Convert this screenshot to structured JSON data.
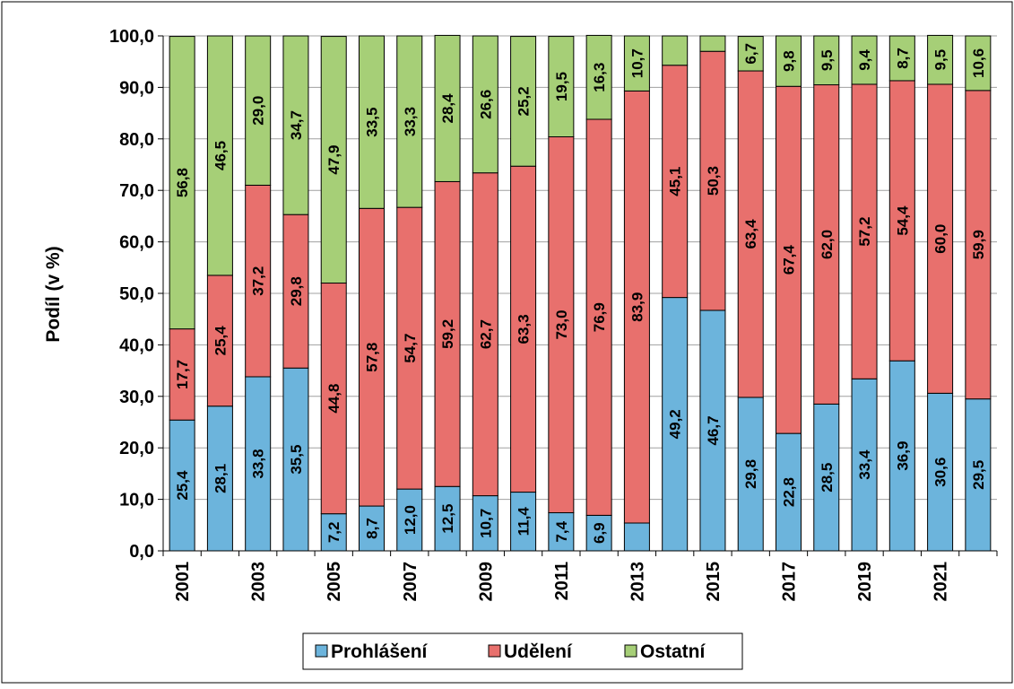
{
  "chart_data": {
    "type": "bar",
    "stacked": true,
    "title": "",
    "xlabel": "",
    "ylabel": "Podíl (v %)",
    "ylim": [
      0,
      100
    ],
    "yticks": [
      "0,0",
      "10,0",
      "20,0",
      "30,0",
      "40,0",
      "50,0",
      "60,0",
      "70,0",
      "80,0",
      "90,0",
      "100,0"
    ],
    "grid": "horizontal",
    "legend_position": "bottom",
    "categories": [
      "2001",
      "2002",
      "2003",
      "2004",
      "2005",
      "2006",
      "2007",
      "2008",
      "2009",
      "2010",
      "2011",
      "2012",
      "2013",
      "2014",
      "2015",
      "2016",
      "2017",
      "2018",
      "2019",
      "2020",
      "2021",
      "2022"
    ],
    "x_tick_labels": [
      "2001",
      "",
      "2003",
      "",
      "2005",
      "",
      "2007",
      "",
      "2009",
      "",
      "2011",
      "",
      "2013",
      "",
      "2015",
      "",
      "2017",
      "",
      "2019",
      "",
      "2021",
      ""
    ],
    "series": [
      {
        "name": "Prohlášení",
        "color": "#6cb4dc",
        "values": [
          25.4,
          28.1,
          33.8,
          35.5,
          7.2,
          8.7,
          12.0,
          12.5,
          10.7,
          11.4,
          7.4,
          6.9,
          5.4,
          49.2,
          46.7,
          29.8,
          22.8,
          28.5,
          33.4,
          36.9,
          30.6,
          29.5
        ],
        "labels": [
          "25,4",
          "28,1",
          "33,8",
          "35,5",
          "7,2",
          "8,7",
          "12,0",
          "12,5",
          "10,7",
          "11,4",
          "7,4",
          "6,9",
          "",
          "49,2",
          "46,7",
          "29,8",
          "22,8",
          "28,5",
          "33,4",
          "36,9",
          "30,6",
          "29,5"
        ]
      },
      {
        "name": "Udělení",
        "color": "#e8706d",
        "values": [
          17.7,
          25.4,
          37.2,
          29.8,
          44.8,
          57.8,
          54.7,
          59.2,
          62.7,
          63.3,
          73.0,
          76.9,
          83.9,
          45.1,
          50.3,
          63.4,
          67.4,
          62.0,
          57.2,
          54.4,
          60.0,
          59.9
        ],
        "labels": [
          "17,7",
          "25,4",
          "37,2",
          "29,8",
          "44,8",
          "57,8",
          "54,7",
          "59,2",
          "62,7",
          "63,3",
          "73,0",
          "76,9",
          "83,9",
          "45,1",
          "50,3",
          "63,4",
          "67,4",
          "62,0",
          "57,2",
          "54,4",
          "60,0",
          "59,9"
        ]
      },
      {
        "name": "Ostatní",
        "color": "#a6cf77",
        "values": [
          56.8,
          46.5,
          29.0,
          34.7,
          47.9,
          33.5,
          33.3,
          28.4,
          26.6,
          25.2,
          19.5,
          16.3,
          10.7,
          5.7,
          3.0,
          6.7,
          9.8,
          9.5,
          9.4,
          8.7,
          9.5,
          10.6
        ],
        "labels": [
          "56,8",
          "46,5",
          "29,0",
          "34,7",
          "47,9",
          "33,5",
          "33,3",
          "28,4",
          "26,6",
          "25,2",
          "19,5",
          "16,3",
          "10,7",
          "",
          "",
          "6,7",
          "9,8",
          "9,5",
          "9,4",
          "8,7",
          "9,5",
          "10,6"
        ]
      }
    ]
  }
}
